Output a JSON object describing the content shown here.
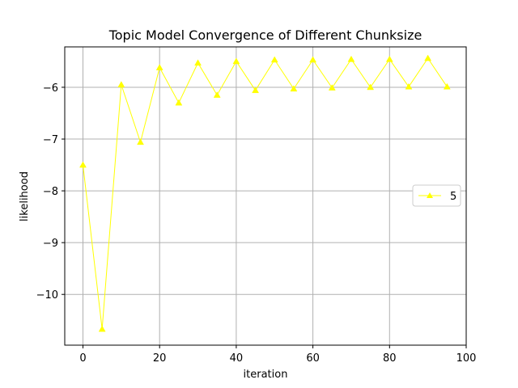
{
  "chart_data": {
    "type": "line",
    "title": "Topic Model Convergence of Different Chunksize",
    "xlabel": "iteration",
    "ylabel": "likelihood",
    "xlim": [
      -4.75,
      100
    ],
    "ylim": [
      -10.98,
      -5.22
    ],
    "xticks": [
      0,
      20,
      40,
      60,
      80,
      100
    ],
    "yticks": [
      -10,
      -9,
      -8,
      -7,
      -6
    ],
    "grid": true,
    "legend_position": "center-right",
    "series": [
      {
        "name": "5",
        "color": "#ffff00",
        "marker": "triangle-up",
        "x": [
          0,
          5,
          10,
          15,
          20,
          25,
          30,
          35,
          40,
          45,
          50,
          55,
          60,
          65,
          70,
          75,
          80,
          85,
          90,
          95
        ],
        "y": [
          -7.5,
          -10.67,
          -5.95,
          -7.06,
          -5.62,
          -6.3,
          -5.53,
          -6.15,
          -5.5,
          -6.06,
          -5.47,
          -6.03,
          -5.47,
          -6.01,
          -5.46,
          -6.0,
          -5.46,
          -5.99,
          -5.44,
          -5.99
        ]
      }
    ]
  }
}
